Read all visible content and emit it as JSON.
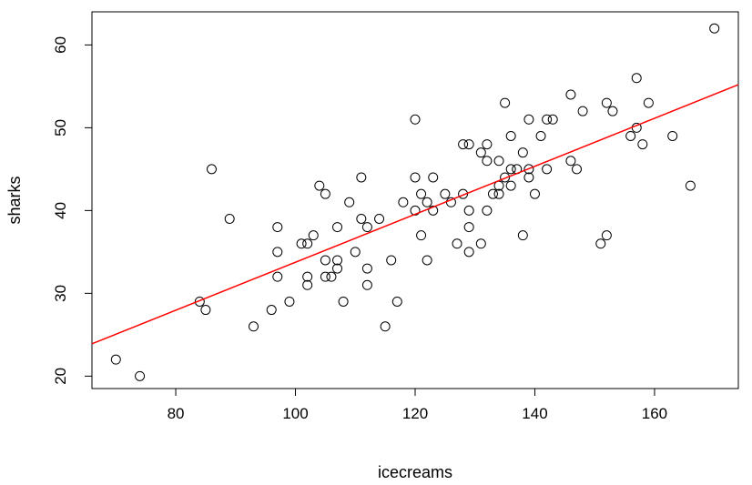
{
  "chart_data": {
    "type": "scatter",
    "title": "",
    "xlabel": "icecreams",
    "ylabel": "sharks",
    "xlim": [
      66,
      174
    ],
    "ylim": [
      18.5,
      64.0
    ],
    "xticks": [
      80,
      100,
      120,
      140,
      160
    ],
    "yticks": [
      20,
      30,
      40,
      50,
      60
    ],
    "grid": false,
    "legend": "none",
    "colors": {
      "points": "#000000",
      "fit_line": "#ff0000",
      "frame": "#000000"
    },
    "fit_line": {
      "x": [
        66,
        174
      ],
      "y": [
        23.9,
        55.2
      ]
    },
    "points": [
      [
        70,
        22
      ],
      [
        74,
        20
      ],
      [
        84,
        29
      ],
      [
        85,
        28
      ],
      [
        86,
        45
      ],
      [
        89,
        39
      ],
      [
        93,
        26
      ],
      [
        96,
        28
      ],
      [
        97,
        38
      ],
      [
        97,
        35
      ],
      [
        97,
        32
      ],
      [
        99,
        29
      ],
      [
        101,
        36
      ],
      [
        102,
        36
      ],
      [
        102,
        32
      ],
      [
        102,
        31
      ],
      [
        103,
        37
      ],
      [
        104,
        43
      ],
      [
        105,
        42
      ],
      [
        105,
        34
      ],
      [
        105,
        32
      ],
      [
        106,
        32
      ],
      [
        107,
        38
      ],
      [
        107,
        34
      ],
      [
        107,
        33
      ],
      [
        108,
        29
      ],
      [
        109,
        41
      ],
      [
        110,
        35
      ],
      [
        111,
        44
      ],
      [
        111,
        39
      ],
      [
        112,
        38
      ],
      [
        112,
        33
      ],
      [
        112,
        31
      ],
      [
        114,
        39
      ],
      [
        115,
        26
      ],
      [
        116,
        34
      ],
      [
        117,
        29
      ],
      [
        118,
        41
      ],
      [
        120,
        51
      ],
      [
        120,
        44
      ],
      [
        120,
        40
      ],
      [
        121,
        42
      ],
      [
        121,
        37
      ],
      [
        122,
        41
      ],
      [
        122,
        34
      ],
      [
        123,
        44
      ],
      [
        123,
        40
      ],
      [
        125,
        42
      ],
      [
        126,
        41
      ],
      [
        127,
        36
      ],
      [
        128,
        48
      ],
      [
        128,
        42
      ],
      [
        129,
        48
      ],
      [
        129,
        40
      ],
      [
        129,
        38
      ],
      [
        129,
        35
      ],
      [
        131,
        47
      ],
      [
        131,
        36
      ],
      [
        132,
        48
      ],
      [
        132,
        46
      ],
      [
        132,
        40
      ],
      [
        133,
        42
      ],
      [
        134,
        46
      ],
      [
        134,
        43
      ],
      [
        134,
        42
      ],
      [
        135,
        53
      ],
      [
        135,
        44
      ],
      [
        136,
        49
      ],
      [
        136,
        45
      ],
      [
        136,
        43
      ],
      [
        137,
        45
      ],
      [
        138,
        47
      ],
      [
        138,
        37
      ],
      [
        139,
        51
      ],
      [
        139,
        45
      ],
      [
        139,
        44
      ],
      [
        140,
        42
      ],
      [
        141,
        49
      ],
      [
        142,
        51
      ],
      [
        142,
        45
      ],
      [
        143,
        51
      ],
      [
        146,
        54
      ],
      [
        146,
        46
      ],
      [
        147,
        45
      ],
      [
        148,
        52
      ],
      [
        151,
        36
      ],
      [
        152,
        53
      ],
      [
        152,
        37
      ],
      [
        153,
        52
      ],
      [
        156,
        49
      ],
      [
        157,
        56
      ],
      [
        157,
        50
      ],
      [
        158,
        48
      ],
      [
        159,
        53
      ],
      [
        163,
        49
      ],
      [
        166,
        43
      ],
      [
        170,
        62
      ]
    ]
  }
}
